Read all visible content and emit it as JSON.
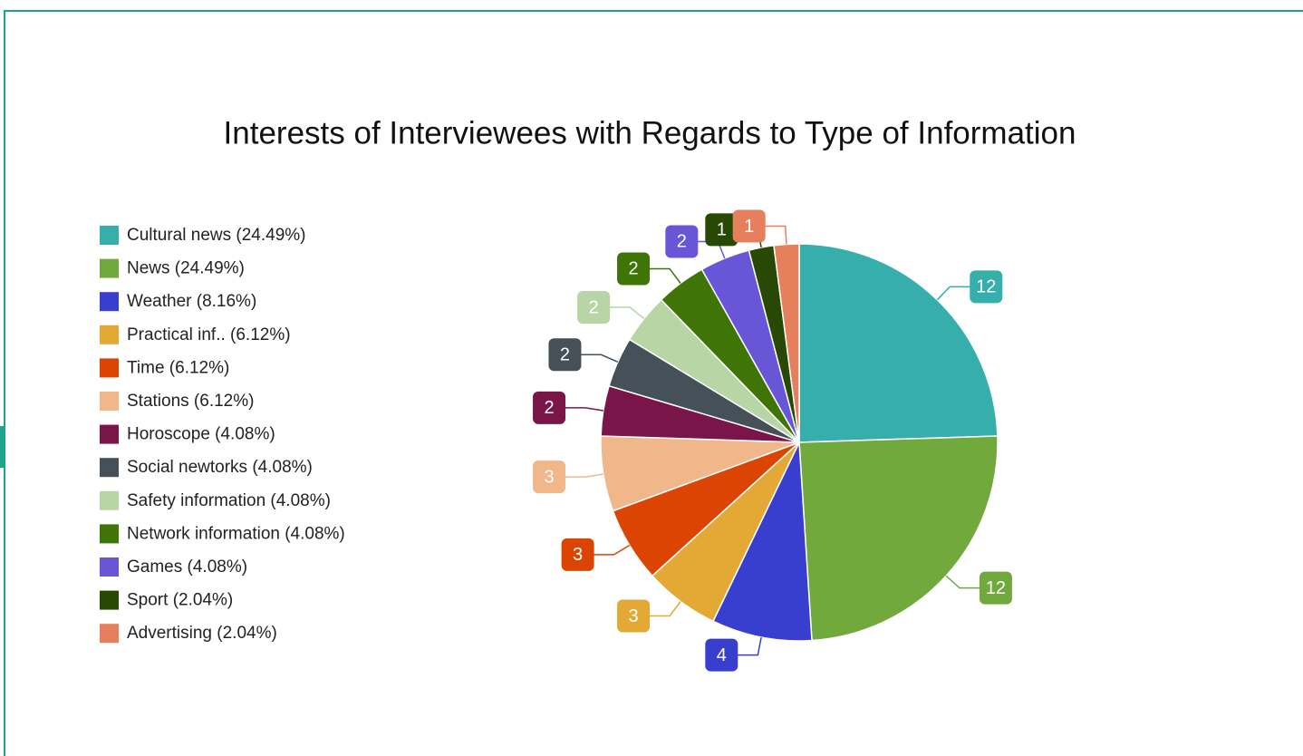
{
  "chart_data": {
    "type": "pie",
    "title": "Interests of Interviewees with Regards to Type of Information",
    "categories": [
      "Cultural news (24.49%)",
      "News (24.49%)",
      "Weather (8.16%)",
      "Practical inf.. (6.12%)",
      "Time (6.12%)",
      "Stations (6.12%)",
      "Horoscope (4.08%)",
      "Social newtorks (4.08%)",
      "Safety information (4.08%)",
      "Network information (4.08%)",
      "Games (4.08%)",
      "Sport (2.04%)",
      "Advertising (2.04%)"
    ],
    "values": [
      12,
      12,
      4,
      3,
      3,
      3,
      2,
      2,
      2,
      2,
      2,
      1,
      1
    ],
    "colors": [
      "#36aeab",
      "#72a93d",
      "#383fcf",
      "#e4a835",
      "#dc4403",
      "#f0b78a",
      "#7a154a",
      "#465058",
      "#b8d5a5",
      "#3f7406",
      "#6956d6",
      "#274903",
      "#e57f5c"
    ],
    "legend": "left"
  }
}
